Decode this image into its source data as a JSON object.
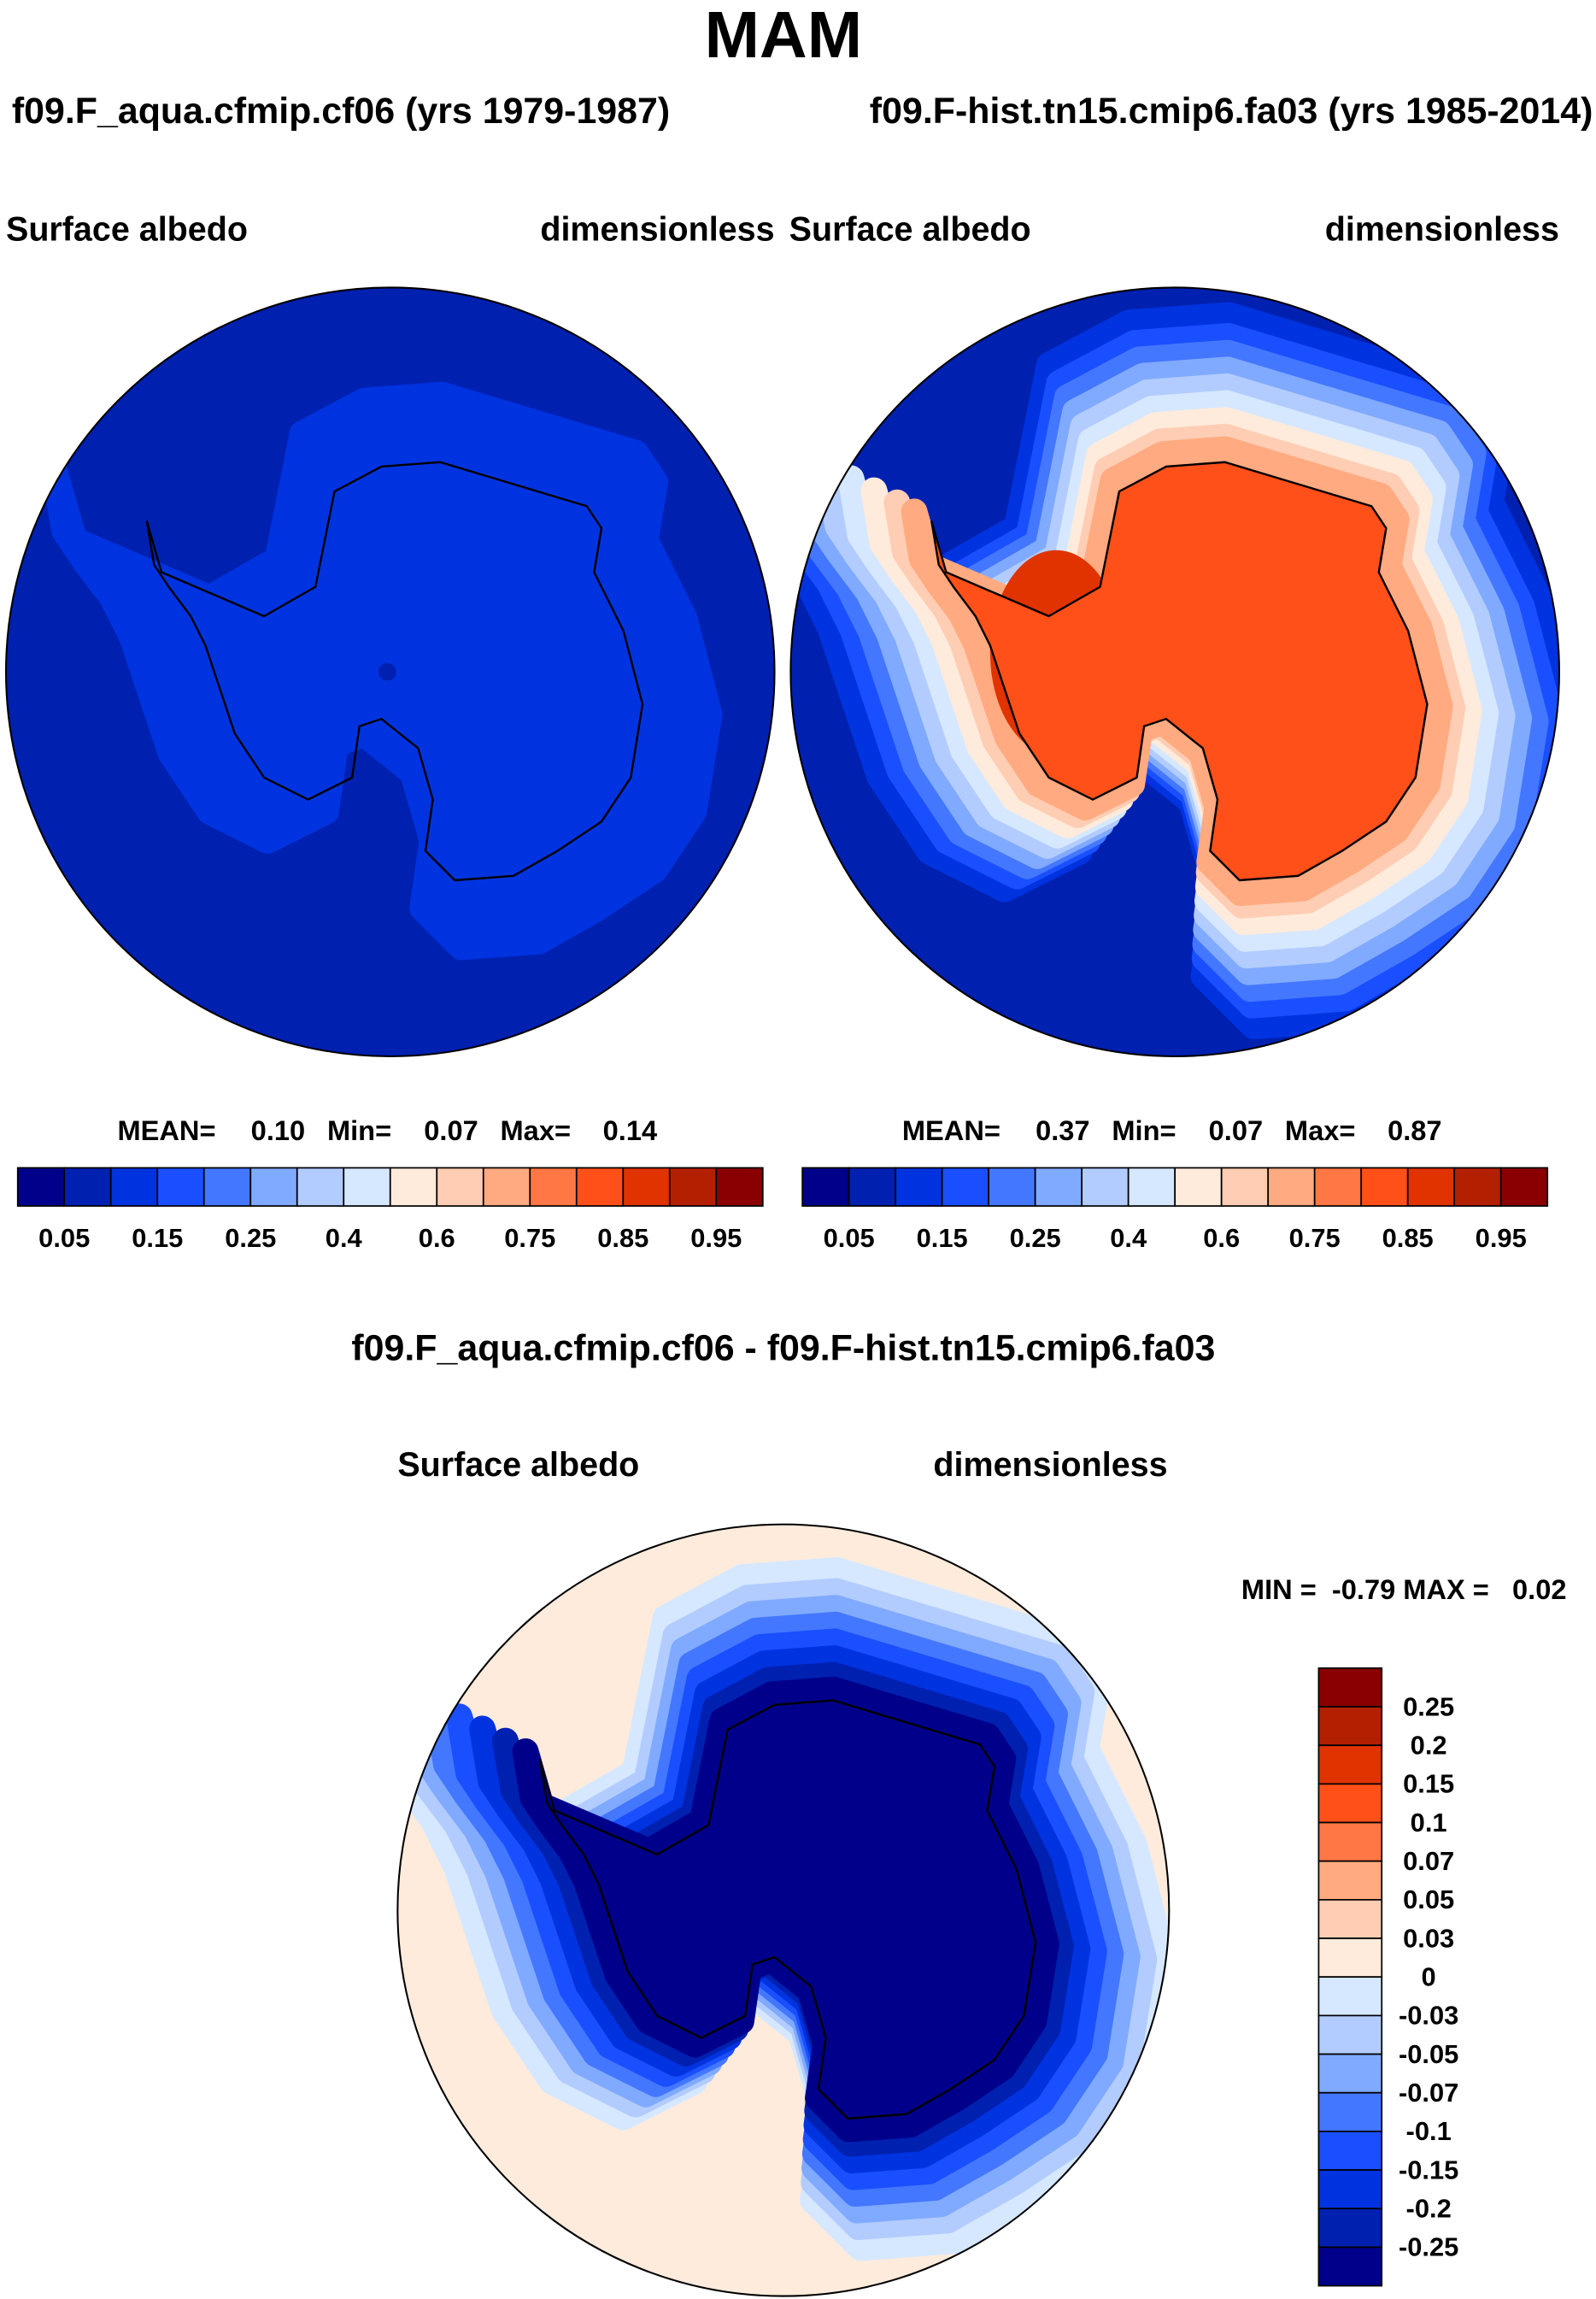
{
  "title": "MAM",
  "chart_data": [
    {
      "type": "heatmap",
      "projection": "south-polar-stereographic",
      "case_title": "f09.F_aqua.cfmip.cf06 (yrs 1979-1987)",
      "left_label": "Surface albedo",
      "right_label": "dimensionless",
      "stats": {
        "mean_label": "MEAN=",
        "mean": "0.10",
        "min_label": "Min=",
        "min": "0.07",
        "max_label": "Max=",
        "max": "0.14"
      },
      "levels": [
        "0.05",
        "0.15",
        "0.25",
        "0.4",
        "0.6",
        "0.75",
        "0.85",
        "0.95"
      ],
      "colorbar_orientation": "horizontal"
    },
    {
      "type": "heatmap",
      "projection": "south-polar-stereographic",
      "case_title": "f09.F-hist.tn15.cmip6.fa03 (yrs 1985-2014)",
      "left_label": "Surface albedo",
      "right_label": "dimensionless",
      "stats": {
        "mean_label": "MEAN=",
        "mean": "0.37",
        "min_label": "Min=",
        "min": "0.07",
        "max_label": "Max=",
        "max": "0.87"
      },
      "levels": [
        "0.05",
        "0.15",
        "0.25",
        "0.4",
        "0.6",
        "0.75",
        "0.85",
        "0.95"
      ],
      "colorbar_orientation": "horizontal"
    },
    {
      "type": "heatmap",
      "projection": "south-polar-stereographic",
      "case_title": "f09.F_aqua.cfmip.cf06 - f09.F-hist.tn15.cmip6.fa03",
      "left_label": "Surface albedo",
      "right_label": "dimensionless",
      "minmax_text": "MIN =  -0.79 MAX =   0.02",
      "levels": [
        "0.25",
        "0.2",
        "0.15",
        "0.1",
        "0.07",
        "0.05",
        "0.03",
        "0",
        "-0.03",
        "-0.05",
        "-0.07",
        "-0.1",
        "-0.15",
        "-0.2",
        "-0.25"
      ],
      "colorbar_orientation": "vertical"
    }
  ],
  "colors": [
    "#00008a",
    "#0020b0",
    "#0033e0",
    "#1a4fff",
    "#4477ff",
    "#80aaff",
    "#b3ccff",
    "#d6e8ff",
    "#ffebdb",
    "#ffcdb3",
    "#ffaa80",
    "#ff7744",
    "#ff5019",
    "#e03300",
    "#b32000",
    "#8a0000"
  ]
}
